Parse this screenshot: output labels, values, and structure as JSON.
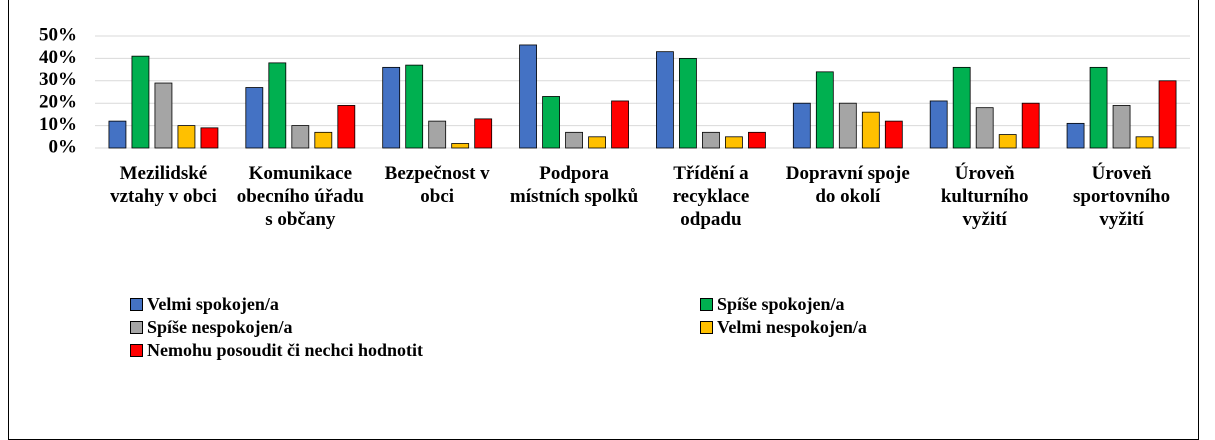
{
  "chart_data": {
    "type": "bar",
    "categories": [
      "Mezilidské vztahy v obci",
      "Komunikace obecního úřadu s občany",
      "Bezpečnost v obci",
      "Podpora místních spolků",
      "Třídění a recyklace odpadu",
      "Dopravní spoje do okolí",
      "Úroveň kulturního vyžití",
      "Úroveň sportovního vyžití"
    ],
    "series": [
      {
        "name": "Velmi spokojen/a",
        "color": "#4472c4",
        "values": [
          12,
          27,
          36,
          46,
          43,
          20,
          21,
          11
        ]
      },
      {
        "name": "Spíše spokojen/a",
        "color": "#00b050",
        "values": [
          41,
          38,
          37,
          23,
          40,
          34,
          36,
          36
        ]
      },
      {
        "name": "Spíše nespokojen/a",
        "color": "#a5a5a5",
        "values": [
          29,
          10,
          12,
          7,
          7,
          20,
          18,
          19
        ]
      },
      {
        "name": "Velmi nespokojen/a",
        "color": "#ffc000",
        "values": [
          10,
          7,
          2,
          5,
          5,
          16,
          6,
          5
        ]
      },
      {
        "name": "Nemohu posoudit či nechci hodnotit",
        "color": "#ff0000",
        "values": [
          9,
          19,
          13,
          21,
          7,
          12,
          20,
          30
        ]
      }
    ],
    "ylim": [
      0,
      50
    ],
    "yticks": [
      {
        "value": 0,
        "label": "0%"
      },
      {
        "value": 10,
        "label": "10%"
      },
      {
        "value": 20,
        "label": "20%"
      },
      {
        "value": 30,
        "label": "30%"
      },
      {
        "value": 40,
        "label": "40%"
      },
      {
        "value": 50,
        "label": "50%"
      }
    ],
    "grid": true
  }
}
